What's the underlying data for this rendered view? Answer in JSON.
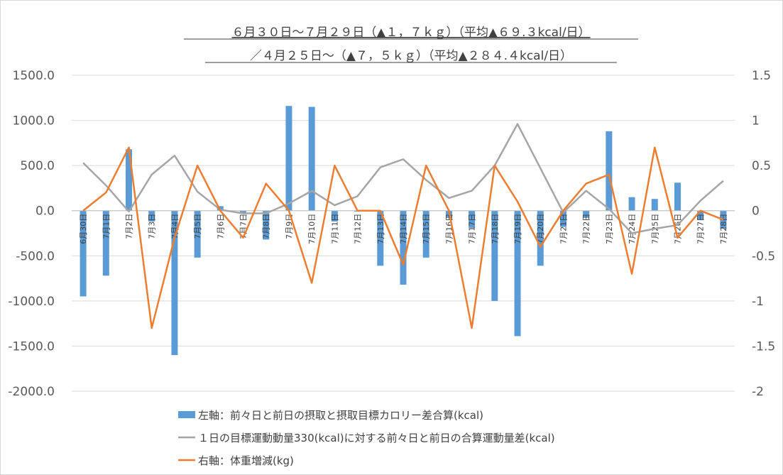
{
  "chart_data": {
    "type": "bar",
    "title_line1": "６月３０日～７月２９日（▲１，７ｋｇ）（平均▲６９.３kcal/日）",
    "title_line2": "／４月２５日～（▲７，５ｋｇ）（平均▲２８４.４kcal/日）",
    "categories": [
      "6月30日",
      "7月1日",
      "7月2日",
      "7月3日",
      "7月4日",
      "7月5日",
      "7月6日",
      "7月7日",
      "7月8日",
      "7月9日",
      "7月10日",
      "7月11日",
      "7月12日",
      "7月13日",
      "7月14日",
      "7月15日",
      "7月16日",
      "7月17日",
      "7月18日",
      "7月19日",
      "7月20日",
      "7月21日",
      "7月22日",
      "7月23日",
      "7月24日",
      "7月25日",
      "7月26日",
      "7月27日",
      "7月28日"
    ],
    "left_axis": {
      "ylim": [
        -2000,
        1500
      ],
      "ticks": [
        "1500.0",
        "1000.0",
        "500.0",
        "0.0",
        "-500.0",
        "-1000.0",
        "-1500.0",
        "-2000.0"
      ]
    },
    "right_axis": {
      "ylim": [
        -2,
        1.5
      ],
      "ticks": [
        "1.5",
        "1",
        "0.5",
        "0",
        "-0.5",
        "-1",
        "-1.5",
        "-2"
      ]
    },
    "series": [
      {
        "name": "左軸：前々日と前日の摂取と摂取目標カロリー差合算(kcal)",
        "type": "bar",
        "axis": "left",
        "color": "#5b9bd5",
        "values": [
          -950,
          -720,
          680,
          -120,
          -1600,
          -520,
          50,
          -30,
          -320,
          1160,
          1150,
          -120,
          -10,
          -610,
          -820,
          -520,
          -80,
          -190,
          -1000,
          -1390,
          -610,
          -180,
          -80,
          880,
          150,
          130,
          310,
          -100,
          -200
        ]
      },
      {
        "name": "１日の目標運動動量330(kcal)に対する前々日と前日の合算運動量差(kcal)",
        "type": "line",
        "axis": "left",
        "color": "#a5a5a5",
        "values": [
          530,
          280,
          -10,
          400,
          610,
          210,
          10,
          -30,
          -30,
          80,
          220,
          60,
          160,
          480,
          570,
          340,
          140,
          220,
          500,
          960,
          470,
          -20,
          220,
          20,
          -250,
          -200,
          -160,
          110,
          330
        ]
      },
      {
        "name": "右軸：体重増減(kg)",
        "type": "line",
        "axis": "right",
        "color": "#ed7d31",
        "values": [
          0,
          0.2,
          0.7,
          -1.3,
          -0.3,
          0.5,
          0,
          -0.3,
          0.3,
          0,
          -0.8,
          0.5,
          0,
          0,
          -0.6,
          0.5,
          0,
          -1.3,
          0.5,
          0.1,
          -0.4,
          0,
          0.3,
          0.4,
          -0.7,
          0.7,
          -0.3,
          0,
          -0.1
        ]
      }
    ]
  }
}
